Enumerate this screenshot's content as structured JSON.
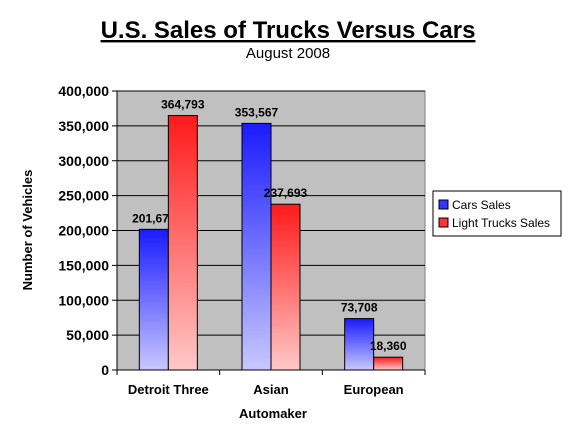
{
  "chart_data": {
    "type": "bar",
    "title": "U.S. Sales of Trucks Versus Cars",
    "subtitle": "August 2008",
    "xlabel": "Automaker",
    "ylabel": "Number of Vehicles",
    "categories": [
      "Detroit Three",
      "Asian",
      "European"
    ],
    "series": [
      {
        "name": "Cars Sales",
        "values": [
          201672,
          353567,
          73708
        ],
        "labels": [
          "201,672",
          "353,567",
          "73,708"
        ],
        "color_top": "#1a1aff",
        "color_bottom": "#c8c8ff",
        "legend_color": "#3333ff"
      },
      {
        "name": "Light Trucks Sales",
        "values": [
          364793,
          237693,
          18360
        ],
        "labels": [
          "364,793",
          "237,693",
          "18,360"
        ],
        "color_top": "#ff1a1a",
        "color_bottom": "#ffc8c8",
        "legend_color": "#ff3333"
      }
    ],
    "ylim": [
      0,
      400000
    ],
    "yticks": [
      0,
      50000,
      100000,
      150000,
      200000,
      250000,
      300000,
      350000,
      400000
    ],
    "ytick_labels": [
      "0",
      "50,000",
      "100,000",
      "150,000",
      "200,000",
      "250,000",
      "300,000",
      "350,000",
      "400,000"
    ],
    "grid": true,
    "plot_background": "#c0c0c0",
    "legend_position": "right"
  }
}
